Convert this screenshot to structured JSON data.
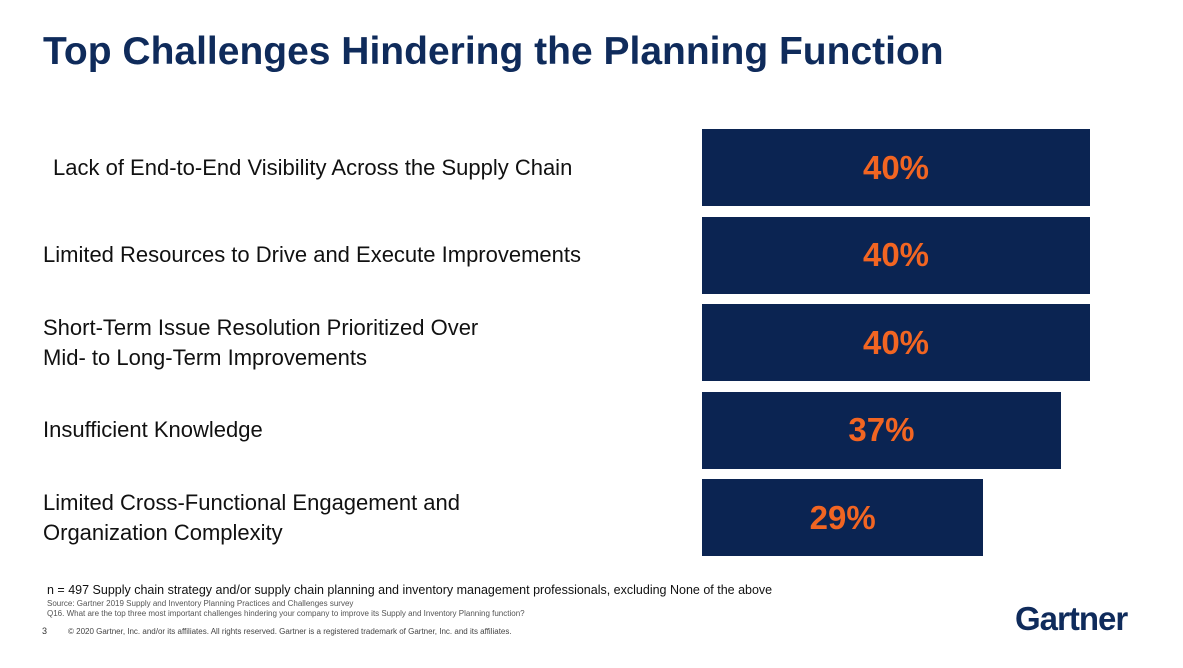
{
  "chart_data": {
    "type": "bar",
    "title": "Top Challenges Hindering the Planning Function",
    "categories": [
      "Lack of End-to-End Visibility Across the Supply Chain",
      "Limited Resources to Drive and Execute Improvements",
      "Short-Term Issue Resolution Prioritized Over\nMid- to Long-Term Improvements",
      "Insufficient Knowledge",
      "Limited Cross-Functional Engagement and\nOrganization Complexity"
    ],
    "values": [
      40,
      40,
      40,
      37,
      29
    ],
    "value_labels": [
      "40%",
      "40%",
      "40%",
      "37%",
      "29%"
    ],
    "color": "#0b2452",
    "note": "n = 497 Supply chain strategy and/or supply chain planning and inventory management professionals, excluding None of the above",
    "source": "Source: Gartner 2019 Supply and Inventory Planning Practices and Challenges survey",
    "question": "Q16. What are the top three most important challenges hindering your company to improve its Supply and Inventory Planning function?",
    "page_number": "3",
    "copyright": "© 2020 Gartner, Inc. and/or its affiliates. All rights reserved. Gartner is a registered trademark of Gartner, Inc. and its affiliates.",
    "logo": "Gartner"
  }
}
